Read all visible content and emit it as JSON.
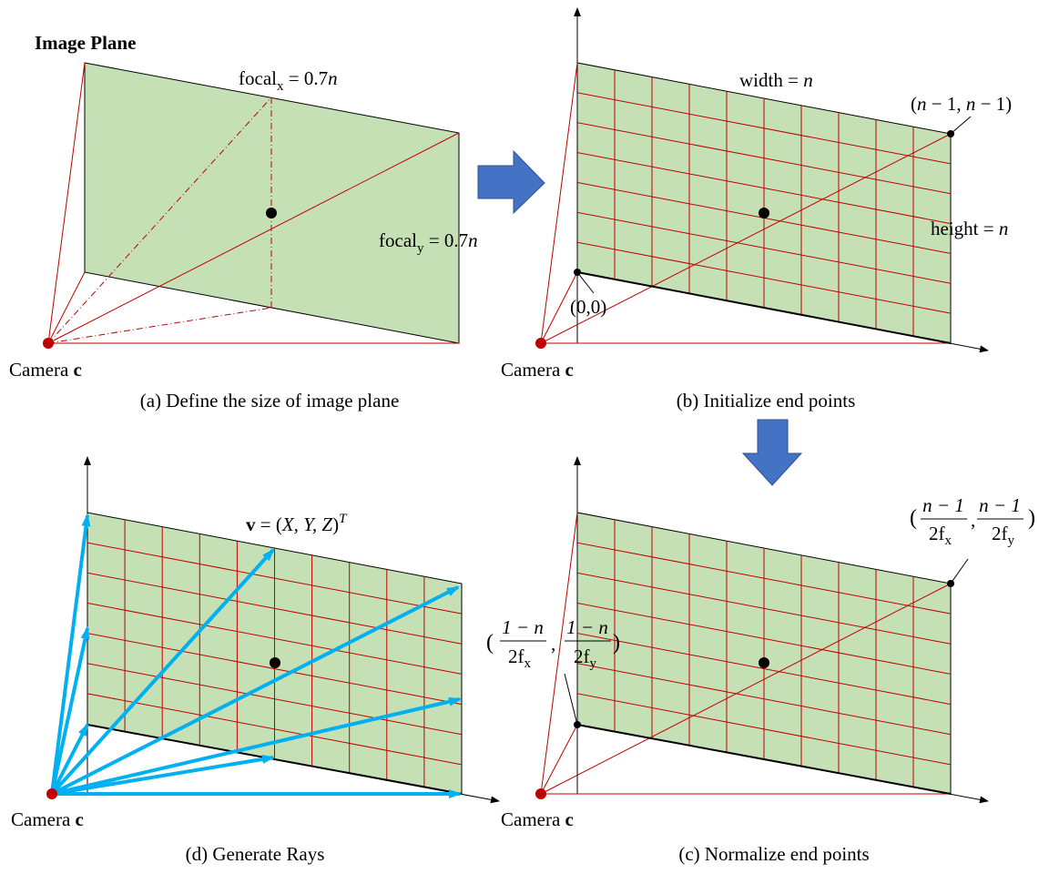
{
  "colors": {
    "plane_fill": "#c5e0b4",
    "frame_red": "#c00000",
    "grid_red": "#c00000",
    "ray_blue": "#00b0f0",
    "arrow_blue": "#4472c4",
    "label_green": "#548235",
    "camera_dot": "#c00000",
    "center_dot": "#000000"
  },
  "panels": {
    "a": {
      "caption": "(a) Define the size of image plane",
      "title": "Image Plane",
      "focal_x": {
        "base": "focal",
        "sub": "x",
        "rest": " = 0.7",
        "var": "n"
      },
      "focal_y": {
        "base": "focal",
        "sub": "y",
        "rest": " = 0.7",
        "var": "n"
      },
      "camera": {
        "text": "Camera ",
        "bold": "c"
      }
    },
    "b": {
      "caption": "(b) Initialize end points",
      "width": {
        "text": "width = ",
        "var": "n"
      },
      "height": {
        "text": "height = ",
        "var": "n"
      },
      "end_point": {
        "p1": "(",
        "v1": "n",
        "p2": " − 1, ",
        "v2": "n",
        "p3": " − 1)"
      },
      "origin": "(0,0)",
      "camera": {
        "text": "Camera ",
        "bold": "c"
      }
    },
    "c": {
      "caption": "(c) Normalize end points",
      "end_point": {
        "open": "(",
        "num1": "n − 1",
        "den1": "2f",
        "sub1": "x",
        "comma": ",",
        "num2": "n − 1",
        "den2": "2f",
        "sub2": "y",
        "close": ")"
      },
      "start_point": {
        "open": "(",
        "num1": "1 − n",
        "den1": "2f",
        "sub1": "x",
        "comma": ",",
        "num2": "1 − n",
        "den2": "2f",
        "sub2": "y",
        "close": ")"
      },
      "camera": {
        "text": "Camera ",
        "bold": "c"
      }
    },
    "d": {
      "caption": "(d) Generate Rays",
      "vector": {
        "bold": "v",
        "eq": " = (",
        "vars": "X, Y, Z",
        "close": ")",
        "sup": "T"
      },
      "camera": {
        "text": "Camera ",
        "bold": "c"
      }
    }
  }
}
